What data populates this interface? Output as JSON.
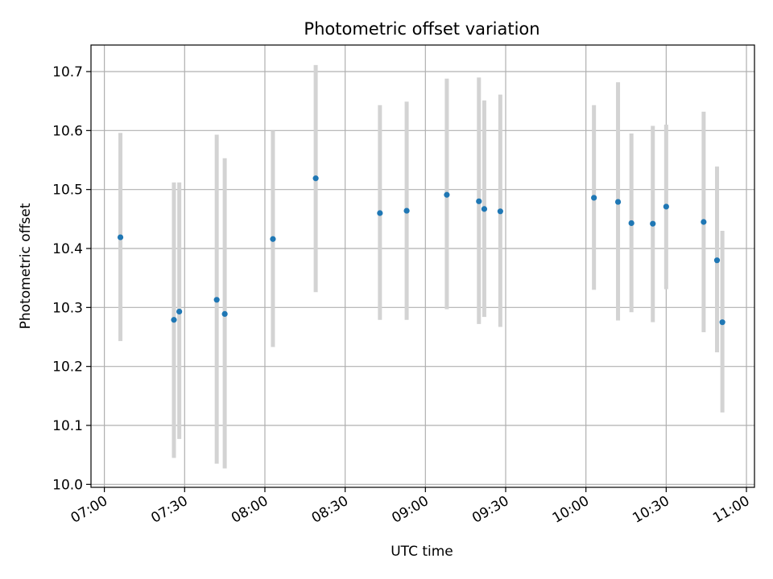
{
  "chart_data": {
    "type": "scatter",
    "title": "Photometric offset variation",
    "xlabel": "UTC time",
    "ylabel": "Photometric offset",
    "x_unit": "UTC",
    "xlim": [
      "06:55",
      "11:03"
    ],
    "ylim": [
      9.995,
      10.745
    ],
    "x_ticks": [
      "07:00",
      "07:30",
      "08:00",
      "08:30",
      "09:00",
      "09:30",
      "10:00",
      "10:30",
      "11:00"
    ],
    "y_ticks": [
      "10.0",
      "10.1",
      "10.2",
      "10.3",
      "10.4",
      "10.5",
      "10.6",
      "10.7"
    ],
    "grid": true,
    "point_color": "#1f77b4",
    "error_color": "#d3d3d3",
    "points": [
      {
        "x": "07:06",
        "y": 10.419,
        "ylow": 10.243,
        "yhigh": 10.596
      },
      {
        "x": "07:26",
        "y": 10.279,
        "ylow": 10.045,
        "yhigh": 10.512
      },
      {
        "x": "07:28",
        "y": 10.293,
        "ylow": 10.077,
        "yhigh": 10.512
      },
      {
        "x": "07:42",
        "y": 10.313,
        "ylow": 10.035,
        "yhigh": 10.593
      },
      {
        "x": "07:45",
        "y": 10.289,
        "ylow": 10.027,
        "yhigh": 10.553
      },
      {
        "x": "08:03",
        "y": 10.416,
        "ylow": 10.233,
        "yhigh": 10.6
      },
      {
        "x": "08:19",
        "y": 10.519,
        "ylow": 10.326,
        "yhigh": 10.711
      },
      {
        "x": "08:43",
        "y": 10.46,
        "ylow": 10.279,
        "yhigh": 10.643
      },
      {
        "x": "08:53",
        "y": 10.464,
        "ylow": 10.279,
        "yhigh": 10.649
      },
      {
        "x": "09:08",
        "y": 10.491,
        "ylow": 10.297,
        "yhigh": 10.688
      },
      {
        "x": "09:20",
        "y": 10.48,
        "ylow": 10.272,
        "yhigh": 10.69
      },
      {
        "x": "09:22",
        "y": 10.467,
        "ylow": 10.284,
        "yhigh": 10.651
      },
      {
        "x": "09:28",
        "y": 10.463,
        "ylow": 10.267,
        "yhigh": 10.661
      },
      {
        "x": "10:03",
        "y": 10.486,
        "ylow": 10.33,
        "yhigh": 10.643
      },
      {
        "x": "10:12",
        "y": 10.479,
        "ylow": 10.278,
        "yhigh": 10.682
      },
      {
        "x": "10:17",
        "y": 10.443,
        "ylow": 10.292,
        "yhigh": 10.595
      },
      {
        "x": "10:25",
        "y": 10.442,
        "ylow": 10.275,
        "yhigh": 10.608
      },
      {
        "x": "10:30",
        "y": 10.471,
        "ylow": 10.331,
        "yhigh": 10.61
      },
      {
        "x": "10:44",
        "y": 10.445,
        "ylow": 10.258,
        "yhigh": 10.632
      },
      {
        "x": "10:49",
        "y": 10.38,
        "ylow": 10.224,
        "yhigh": 10.539
      },
      {
        "x": "10:51",
        "y": 10.275,
        "ylow": 10.122,
        "yhigh": 10.43
      }
    ]
  }
}
